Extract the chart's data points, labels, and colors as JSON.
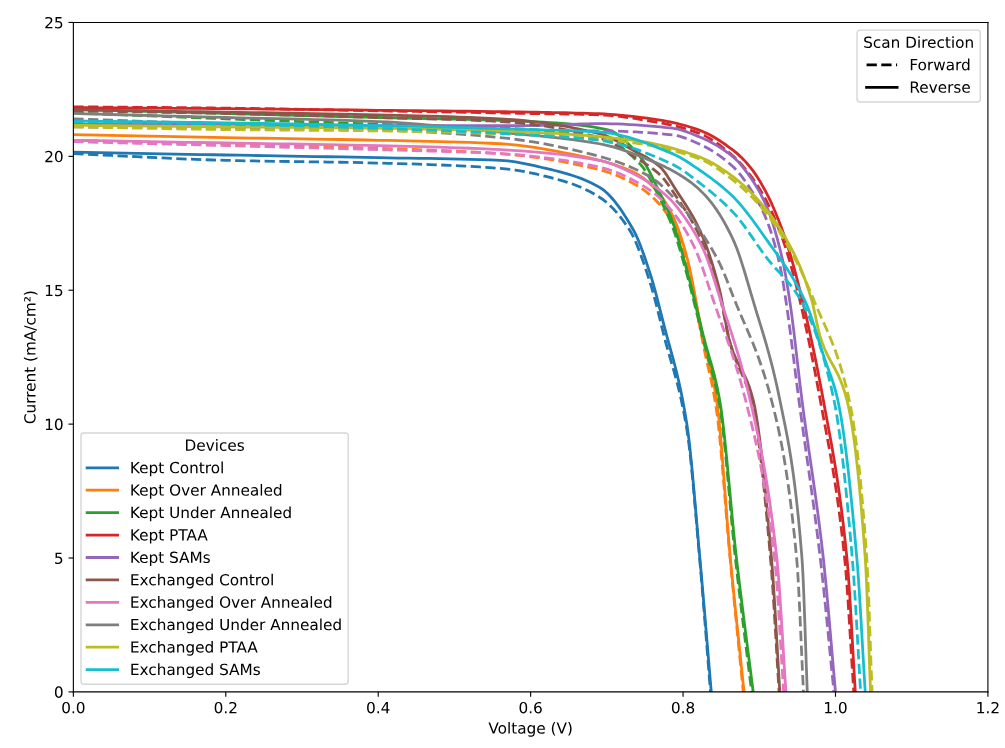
{
  "chart_data": {
    "type": "line",
    "xlabel": "Voltage (V)",
    "ylabel": "Current (mA/cm²)",
    "xlim": [
      0,
      1.2
    ],
    "ylim": [
      0,
      25
    ],
    "xticks": [
      {
        "value": 0,
        "label": "0.0"
      },
      {
        "value": 0.2,
        "label": "0.2"
      },
      {
        "value": 0.4,
        "label": "0.4"
      },
      {
        "value": 0.6,
        "label": "0.6"
      },
      {
        "value": 0.8,
        "label": "0.8"
      },
      {
        "value": 1.0,
        "label": "1.0"
      },
      {
        "value": 1.2,
        "label": "1.2"
      }
    ],
    "yticks": [
      0,
      5,
      10,
      15,
      20,
      25
    ],
    "grid": false,
    "legend": "bottom left",
    "legend_title": "Devices",
    "marker": "none",
    "annotations": [
      "Scan Direction",
      "Forward",
      "Reverse"
    ],
    "series": [
      {
        "color": "#1f77b4",
        "line_style": "dashed",
        "x": [
          0,
          0.2,
          0.4,
          0.56,
          0.64,
          0.69,
          0.73,
          0.757,
          0.775,
          0.805,
          0.822,
          0.836
        ],
        "values": [
          20.1,
          19.85,
          19.75,
          19.55,
          19.1,
          18.48,
          17.24,
          15.26,
          13.3,
          9.8,
          4.9,
          0
        ]
      },
      {
        "name": "Kept Control",
        "color": "#1f77b4",
        "line_style": "solid",
        "x": [
          0,
          0.2,
          0.4,
          0.56,
          0.62,
          0.69,
          0.735,
          0.757,
          0.774,
          0.805,
          0.822,
          0.837
        ],
        "values": [
          20.16,
          20.05,
          19.95,
          19.85,
          19.55,
          18.85,
          17.24,
          15.6,
          13.8,
          10.0,
          5.0,
          0
        ]
      },
      {
        "name": "Kept Over Annealed",
        "color": "#ff7f0e",
        "line_style": "solid",
        "x": [
          0,
          0.2,
          0.4,
          0.56,
          0.65,
          0.735,
          0.765,
          0.787,
          0.805,
          0.827,
          0.844,
          0.862,
          0.88
        ],
        "values": [
          20.81,
          20.7,
          20.6,
          20.47,
          20.1,
          19.41,
          18.73,
          17.74,
          16.24,
          13.1,
          10.9,
          5.0,
          0
        ]
      },
      {
        "color": "#ff7f0e",
        "line_style": "dashed",
        "x": [
          0,
          0.2,
          0.4,
          0.56,
          0.69,
          0.74,
          0.787,
          0.805,
          0.827,
          0.844,
          0.862,
          0.879
        ],
        "values": [
          20.6,
          20.45,
          20.3,
          20.1,
          19.5,
          18.9,
          17.5,
          16.0,
          12.9,
          10.5,
          4.9,
          0
        ]
      },
      {
        "name": "Kept Under Annealed",
        "color": "#2ca02c",
        "line_style": "solid",
        "x": [
          0,
          0.2,
          0.4,
          0.6,
          0.7,
          0.744,
          0.77,
          0.787,
          0.805,
          0.827,
          0.848,
          0.87,
          0.892
        ],
        "values": [
          21.75,
          21.6,
          21.45,
          21.3,
          21.0,
          19.97,
          18.6,
          17.5,
          15.75,
          13.26,
          10.9,
          5.0,
          0
        ]
      },
      {
        "color": "#2ca02c",
        "line_style": "dashed",
        "x": [
          0,
          0.2,
          0.4,
          0.6,
          0.7,
          0.744,
          0.77,
          0.787,
          0.805,
          0.827,
          0.848,
          0.869,
          0.89
        ],
        "values": [
          21.62,
          21.4,
          21.2,
          21.0,
          20.6,
          19.7,
          18.4,
          17.3,
          15.6,
          13.1,
          10.7,
          4.9,
          0
        ]
      },
      {
        "name": "Kept PTAA",
        "color": "#d62728",
        "line_style": "solid",
        "x": [
          0,
          0.2,
          0.4,
          0.6,
          0.69,
          0.77,
          0.822,
          0.866,
          0.888,
          0.91,
          0.932,
          0.95,
          0.984,
          1.015,
          1.026
        ],
        "values": [
          21.82,
          21.78,
          21.72,
          21.65,
          21.59,
          21.35,
          20.97,
          20.22,
          19.6,
          18.6,
          17.1,
          15.37,
          10.9,
          5.0,
          0
        ]
      },
      {
        "color": "#d62728",
        "line_style": "dashed",
        "x": [
          0,
          0.2,
          0.4,
          0.6,
          0.69,
          0.77,
          0.822,
          0.866,
          0.888,
          0.91,
          0.932,
          0.95,
          0.98,
          1.012,
          1.024
        ],
        "values": [
          21.85,
          21.8,
          21.7,
          21.6,
          21.55,
          21.25,
          20.85,
          20.0,
          19.3,
          18.3,
          16.8,
          15.0,
          10.9,
          5.0,
          0
        ]
      },
      {
        "name": "Kept SAMs",
        "color": "#9467bd",
        "line_style": "solid",
        "x": [
          0,
          0.2,
          0.4,
          0.6,
          0.69,
          0.786,
          0.822,
          0.866,
          0.888,
          0.91,
          0.93,
          0.94,
          0.956,
          0.984,
          1.0
        ],
        "values": [
          21.2,
          21.2,
          21.15,
          21.15,
          21.22,
          21.05,
          20.72,
          19.97,
          19.23,
          18.1,
          16.2,
          14.6,
          10.9,
          5.0,
          0
        ]
      },
      {
        "color": "#9467bd",
        "line_style": "dashed",
        "x": [
          0,
          0.2,
          0.4,
          0.6,
          0.69,
          0.786,
          0.822,
          0.866,
          0.888,
          0.91,
          0.928,
          0.935,
          0.952,
          0.98,
          0.998
        ],
        "values": [
          21.1,
          21.05,
          21.0,
          20.95,
          20.95,
          20.8,
          20.45,
          19.6,
          18.8,
          17.6,
          15.8,
          14.6,
          10.9,
          5.0,
          0
        ]
      },
      {
        "name": "Exchanged Control",
        "color": "#8c564b",
        "line_style": "solid",
        "x": [
          0,
          0.2,
          0.4,
          0.56,
          0.69,
          0.735,
          0.77,
          0.791,
          0.822,
          0.848,
          0.861,
          0.892,
          0.916,
          0.927
        ],
        "values": [
          21.74,
          21.65,
          21.55,
          21.4,
          20.85,
          20.22,
          19.6,
          18.73,
          17.24,
          15.0,
          13.1,
          10.9,
          5.0,
          0
        ]
      },
      {
        "color": "#8c564b",
        "line_style": "dashed",
        "x": [
          0,
          0.2,
          0.4,
          0.56,
          0.69,
          0.735,
          0.77,
          0.791,
          0.822,
          0.848,
          0.862,
          0.892,
          0.915,
          0.926
        ],
        "values": [
          21.7,
          21.6,
          21.45,
          21.3,
          20.7,
          20.0,
          19.3,
          18.5,
          17.0,
          14.8,
          13.0,
          10.6,
          4.9,
          0
        ]
      },
      {
        "name": "Exchanged Over Annealed",
        "color": "#e377c2",
        "line_style": "solid",
        "x": [
          0,
          0.2,
          0.4,
          0.56,
          0.69,
          0.735,
          0.78,
          0.805,
          0.827,
          0.848,
          0.888,
          0.923,
          0.935
        ],
        "values": [
          20.6,
          20.5,
          20.4,
          20.25,
          19.85,
          19.35,
          18.48,
          17.6,
          16.5,
          14.75,
          10.9,
          5.0,
          0
        ]
      },
      {
        "color": "#e377c2",
        "line_style": "dashed",
        "x": [
          0,
          0.2,
          0.4,
          0.56,
          0.69,
          0.757,
          0.787,
          0.815,
          0.84,
          0.882,
          0.92,
          0.932
        ],
        "values": [
          20.55,
          20.4,
          20.25,
          20.1,
          19.6,
          18.73,
          17.9,
          16.6,
          14.6,
          10.9,
          5.0,
          0
        ]
      },
      {
        "name": "Exchanged Under Annealed",
        "color": "#7f7f7f",
        "line_style": "solid",
        "x": [
          0,
          0.2,
          0.4,
          0.56,
          0.69,
          0.757,
          0.8,
          0.831,
          0.866,
          0.892,
          0.927,
          0.956,
          0.963
        ],
        "values": [
          21.6,
          21.45,
          21.3,
          20.9,
          20.47,
          19.85,
          19.23,
          18.48,
          16.87,
          14.6,
          10.9,
          5.0,
          0
        ]
      },
      {
        "color": "#7f7f7f",
        "line_style": "dashed",
        "x": [
          0,
          0.2,
          0.4,
          0.56,
          0.69,
          0.757,
          0.796,
          0.822,
          0.848,
          0.866,
          0.916,
          0.949,
          0.958
        ],
        "values": [
          21.4,
          21.2,
          21.0,
          20.7,
          20.0,
          19.23,
          18.2,
          17.24,
          16.0,
          14.75,
          10.9,
          5.0,
          0
        ]
      },
      {
        "name": "Exchanged PTAA",
        "color": "#bcbd22",
        "line_style": "solid",
        "x": [
          0,
          0.2,
          0.4,
          0.6,
          0.735,
          0.822,
          0.866,
          0.91,
          0.95,
          0.969,
          0.98,
          1.015,
          1.039,
          1.046
        ],
        "values": [
          21.16,
          21.1,
          21.05,
          20.9,
          20.6,
          19.97,
          19.23,
          17.98,
          16.1,
          14.6,
          13.26,
          10.9,
          5.0,
          0
        ]
      },
      {
        "color": "#bcbd22",
        "line_style": "dashed",
        "x": [
          0,
          0.2,
          0.4,
          0.6,
          0.735,
          0.822,
          0.866,
          0.91,
          0.95,
          0.972,
          1.018,
          1.041,
          1.048
        ],
        "values": [
          21.1,
          21.0,
          20.95,
          20.8,
          20.5,
          19.9,
          19.1,
          17.85,
          16.0,
          14.6,
          10.9,
          5.0,
          0
        ]
      },
      {
        "name": "Exchanged SAMs",
        "color": "#17becf",
        "line_style": "solid",
        "x": [
          0,
          0.2,
          0.4,
          0.6,
          0.69,
          0.786,
          0.822,
          0.866,
          0.91,
          0.96,
          0.985,
          1.003,
          1.028,
          1.039
        ],
        "values": [
          21.32,
          21.25,
          21.15,
          21.0,
          20.91,
          20.1,
          19.48,
          18.48,
          16.87,
          14.6,
          12.5,
          10.9,
          5.0,
          0
        ]
      },
      {
        "color": "#17becf",
        "line_style": "dashed",
        "x": [
          0,
          0.2,
          0.4,
          0.6,
          0.69,
          0.786,
          0.822,
          0.866,
          0.91,
          0.955,
          0.998,
          1.022,
          1.033
        ],
        "values": [
          21.3,
          21.2,
          21.05,
          20.8,
          20.6,
          19.7,
          19.0,
          17.9,
          16.2,
          14.6,
          10.9,
          5.0,
          0
        ]
      }
    ]
  }
}
